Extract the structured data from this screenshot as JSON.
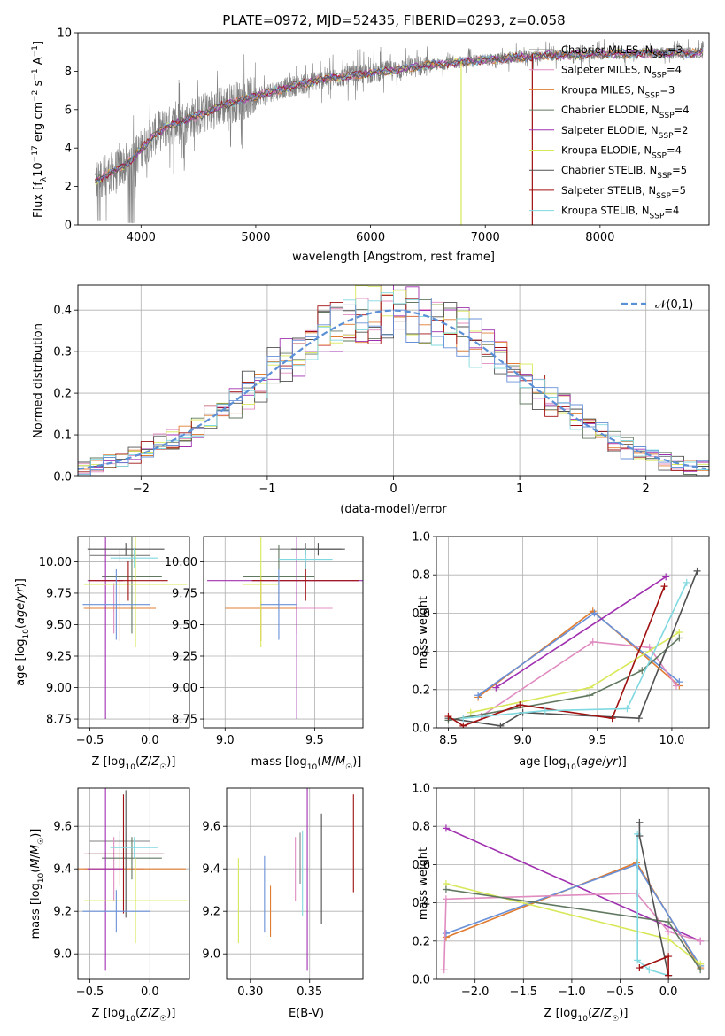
{
  "title": "PLATE=0972, MJD=52435, FIBERID=0293, z=0.058",
  "colors": [
    "#808080",
    "#e08cc0",
    "#e07c30",
    "#607860",
    "#a030b0",
    "#d8e858",
    "#505050",
    "#a01010",
    "#80d8e0",
    "#6890d8"
  ],
  "legend": [
    {
      "imf": "Chabrier",
      "lib": "MILES",
      "n": "3"
    },
    {
      "imf": "Salpeter",
      "lib": "MILES",
      "n": "4"
    },
    {
      "imf": "Kroupa",
      "lib": "MILES",
      "n": "3"
    },
    {
      "imf": "Chabrier",
      "lib": "ELODIE",
      "n": "4"
    },
    {
      "imf": "Salpeter",
      "lib": "ELODIE",
      "n": "2"
    },
    {
      "imf": "Kroupa",
      "lib": "ELODIE",
      "n": "4"
    },
    {
      "imf": "Chabrier",
      "lib": "STELIB",
      "n": "5"
    },
    {
      "imf": "Salpeter",
      "lib": "STELIB",
      "n": "5"
    },
    {
      "imf": "Kroupa",
      "lib": "STELIB",
      "n": "4"
    }
  ],
  "chart_data": [
    {
      "id": "spectrum",
      "type": "line",
      "xlabel": "wavelength [Angstrom, rest frame]",
      "ylabel": "Flux [f_λ 10^-17 erg cm^-2 s^-1 A^-1]",
      "xlim": [
        3450,
        8950
      ],
      "ylim": [
        0,
        10
      ],
      "xticks": [
        4000,
        5000,
        6000,
        7000,
        8000
      ],
      "yticks": [
        0,
        2,
        4,
        6,
        8,
        10
      ],
      "continuum_x": [
        3600,
        3700,
        3800,
        3900,
        4000,
        4100,
        4200,
        4300,
        4500,
        4700,
        5000,
        5300,
        5600,
        6000,
        6500,
        7000,
        7500,
        8000,
        8500,
        8900
      ],
      "continuum_y": [
        2.3,
        2.6,
        2.9,
        3.3,
        3.9,
        4.6,
        5.0,
        5.3,
        5.7,
        6.2,
        6.7,
        7.2,
        7.6,
        7.9,
        8.3,
        8.6,
        8.8,
        8.9,
        8.95,
        8.95
      ],
      "grid": false,
      "legend_position": "right"
    },
    {
      "id": "residuals",
      "type": "line",
      "xlabel": "(data-model)/error",
      "ylabel": "Normed distribution",
      "xlim": [
        -2.5,
        2.5
      ],
      "ylim": [
        0,
        0.46
      ],
      "xticks": [
        -2,
        -1,
        0,
        1,
        2
      ],
      "yticks": [
        0.0,
        0.1,
        0.2,
        0.3,
        0.4
      ],
      "normal_label": "𝒩(0,1)",
      "grid": true,
      "legend_position": "top-right"
    },
    {
      "id": "age_Z",
      "type": "scatter",
      "xlabel": "Z [log10(Z/Z☉)]",
      "ylabel": "age [log10(age/yr)]",
      "xlim": [
        -0.6,
        0.33
      ],
      "ylim": [
        8.68,
        10.2
      ],
      "xticks": [
        -0.5,
        0.0
      ],
      "yticks": [
        8.75,
        9.0,
        9.25,
        9.5,
        9.75,
        10.0
      ],
      "crosses": [
        {
          "x": -0.25,
          "y": 10.05,
          "xerr": 0.25,
          "yerr": 0.05,
          "c": 0
        },
        {
          "x": -0.3,
          "y": 9.63,
          "xerr": 0.25,
          "yerr": 0.2,
          "c": 1
        },
        {
          "x": -0.25,
          "y": 9.63,
          "xerr": 0.3,
          "yerr": 0.26,
          "c": 2
        },
        {
          "x": -0.15,
          "y": 9.88,
          "xerr": 0.25,
          "yerr": 0.45,
          "c": 3
        },
        {
          "x": -0.37,
          "y": 9.85,
          "xerr": 0.15,
          "yerr": 1.1,
          "c": 4
        },
        {
          "x": -0.12,
          "y": 9.82,
          "xerr": 0.43,
          "yerr": 0.5,
          "c": 5
        },
        {
          "x": -0.2,
          "y": 10.1,
          "xerr": 0.32,
          "yerr": 0.05,
          "c": 6
        },
        {
          "x": -0.18,
          "y": 9.85,
          "xerr": 0.33,
          "yerr": 0.16,
          "c": 7
        },
        {
          "x": -0.13,
          "y": 10.03,
          "xerr": 0.2,
          "yerr": 0.08,
          "c": 8
        },
        {
          "x": -0.28,
          "y": 9.66,
          "xerr": 0.28,
          "yerr": 0.28,
          "c": 9
        }
      ]
    },
    {
      "id": "age_mass",
      "type": "scatter",
      "xlabel": "mass [log10(M/M☉)]",
      "ylabel": "",
      "xlim": [
        8.88,
        9.77
      ],
      "ylim": [
        8.68,
        10.2
      ],
      "xticks": [
        9.0,
        9.5
      ],
      "yticks": [
        8.75,
        9.0,
        9.25,
        9.5,
        9.75,
        10.0
      ],
      "crosses": [
        {
          "x": 9.45,
          "y": 10.1,
          "xerr": 0.2,
          "yerr": 0.05,
          "c": 0
        },
        {
          "x": 9.4,
          "y": 9.63,
          "xerr": 0.2,
          "yerr": 0.2,
          "c": 1
        },
        {
          "x": 9.2,
          "y": 9.63,
          "xerr": 0.2,
          "yerr": 0.26,
          "c": 2
        },
        {
          "x": 9.3,
          "y": 9.88,
          "xerr": 0.2,
          "yerr": 0.25,
          "c": 3
        },
        {
          "x": 9.4,
          "y": 9.85,
          "xerr": 0.5,
          "yerr": 1.1,
          "c": 4
        },
        {
          "x": 9.2,
          "y": 9.82,
          "xerr": 0.1,
          "yerr": 0.5,
          "c": 5
        },
        {
          "x": 9.52,
          "y": 10.1,
          "xerr": 0.15,
          "yerr": 0.05,
          "c": 6
        },
        {
          "x": 9.45,
          "y": 9.85,
          "xerr": 0.3,
          "yerr": 0.16,
          "c": 7
        },
        {
          "x": 9.45,
          "y": 10.02,
          "xerr": 0.15,
          "yerr": 0.08,
          "c": 8
        },
        {
          "x": 9.3,
          "y": 9.66,
          "xerr": 0.1,
          "yerr": 0.28,
          "c": 9
        }
      ]
    },
    {
      "id": "weight_age",
      "type": "line",
      "xlabel": "age [log10(age/yr)]",
      "ylabel": "mass weight",
      "xlim": [
        8.42,
        10.25
      ],
      "ylim": [
        0,
        1.0
      ],
      "xticks": [
        8.5,
        9.0,
        9.5,
        10.0
      ],
      "yticks": [
        0.0,
        0.2,
        0.4,
        0.6,
        0.8,
        1.0
      ],
      "grid": true
    },
    {
      "id": "mass_Z",
      "type": "scatter",
      "xlabel": "Z [log10(Z/Z☉)]",
      "ylabel": "mass [log10(M/M☉)]",
      "xlim": [
        -0.6,
        0.33
      ],
      "ylim": [
        8.88,
        9.78
      ],
      "xticks": [
        -0.5,
        0.0
      ],
      "yticks": [
        9.0,
        9.2,
        9.4,
        9.6
      ],
      "crosses": [
        {
          "x": -0.25,
          "y": 9.53,
          "xerr": 0.25,
          "yerr": 0.05,
          "c": 0
        },
        {
          "x": -0.3,
          "y": 9.4,
          "xerr": 0.25,
          "yerr": 0.15,
          "c": 1
        },
        {
          "x": -0.25,
          "y": 9.4,
          "xerr": 0.55,
          "yerr": 0.08,
          "c": 2
        },
        {
          "x": -0.15,
          "y": 9.45,
          "xerr": 0.25,
          "yerr": 0.1,
          "c": 3
        },
        {
          "x": -0.37,
          "y": 9.4,
          "xerr": 0.15,
          "yerr": 0.48,
          "c": 4
        },
        {
          "x": -0.12,
          "y": 9.25,
          "xerr": 0.43,
          "yerr": 0.2,
          "c": 5
        },
        {
          "x": -0.2,
          "y": 9.47,
          "xerr": 0.32,
          "yerr": 0.3,
          "c": 6
        },
        {
          "x": -0.22,
          "y": 9.47,
          "xerr": 0.33,
          "yerr": 0.28,
          "c": 7
        },
        {
          "x": -0.13,
          "y": 9.5,
          "xerr": 0.2,
          "yerr": 0.05,
          "c": 8
        },
        {
          "x": -0.28,
          "y": 9.2,
          "xerr": 0.28,
          "yerr": 0.1,
          "c": 9
        }
      ]
    },
    {
      "id": "mass_ebv",
      "type": "scatter",
      "xlabel": "E(B-V)",
      "ylabel": "",
      "xlim": [
        0.28,
        0.395
      ],
      "ylim": [
        8.88,
        9.78
      ],
      "xticks": [
        0.3,
        0.35
      ],
      "yticks": [
        9.0,
        9.2,
        9.4,
        9.6
      ],
      "crosses": [
        {
          "x": 0.342,
          "y": 9.45,
          "xerr": 0,
          "yerr": 0.12,
          "c": 0
        },
        {
          "x": 0.338,
          "y": 9.4,
          "xerr": 0,
          "yerr": 0.15,
          "c": 1
        },
        {
          "x": 0.317,
          "y": 9.2,
          "xerr": 0,
          "yerr": 0.12,
          "c": 2
        },
        {
          "x": 0.29,
          "y": 9.25,
          "xerr": 0,
          "yerr": 0.2,
          "c": 5
        },
        {
          "x": 0.348,
          "y": 9.4,
          "xerr": 0,
          "yerr": 0.48,
          "c": 4
        },
        {
          "x": 0.36,
          "y": 9.4,
          "xerr": 0,
          "yerr": 0.26,
          "c": 6
        },
        {
          "x": 0.387,
          "y": 9.52,
          "xerr": 0,
          "yerr": 0.23,
          "c": 7
        },
        {
          "x": 0.344,
          "y": 9.38,
          "xerr": 0,
          "yerr": 0.2,
          "c": 8
        },
        {
          "x": 0.312,
          "y": 9.28,
          "xerr": 0,
          "yerr": 0.18,
          "c": 9
        }
      ]
    },
    {
      "id": "weight_Z",
      "type": "line",
      "xlabel": "Z [log10(Z/Z☉)]",
      "ylabel": "mass weight",
      "xlim": [
        -2.4,
        0.42
      ],
      "ylim": [
        0,
        1.0
      ],
      "xticks": [
        -2.0,
        -1.5,
        -1.0,
        -0.5,
        0.0
      ],
      "yticks": [
        0.0,
        0.2,
        0.4,
        0.6,
        0.8,
        1.0
      ],
      "grid": true
    }
  ]
}
